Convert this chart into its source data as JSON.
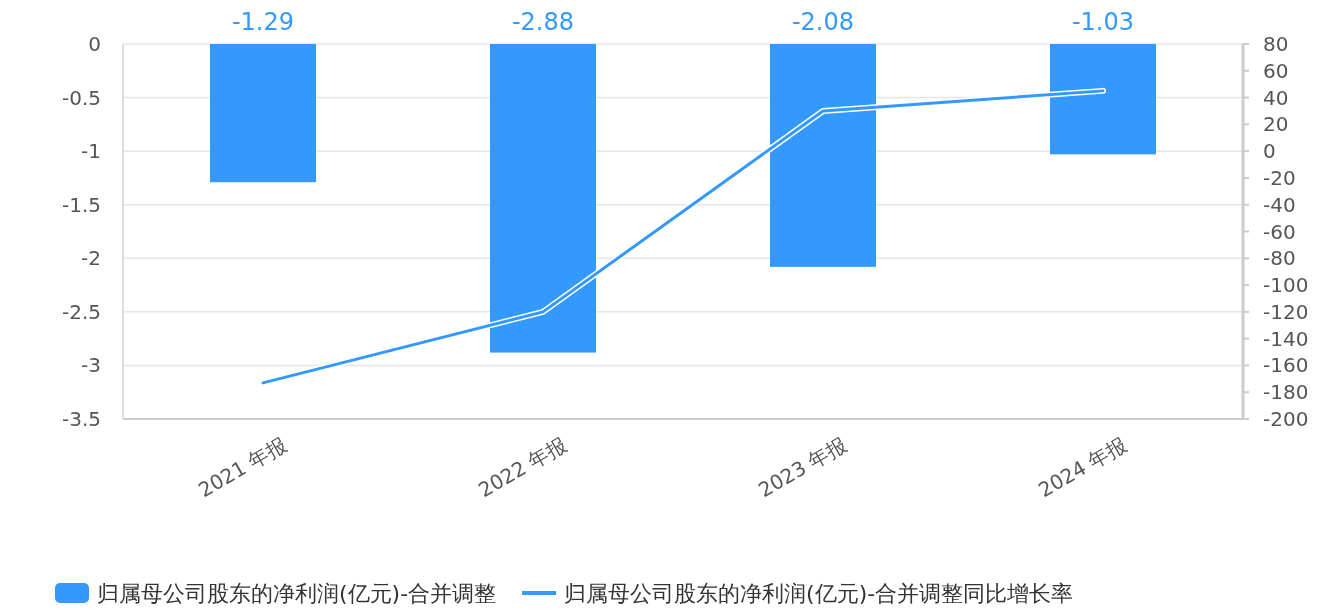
{
  "chart_data": {
    "type": "bar",
    "categories": [
      "2021 年报",
      "2022 年报",
      "2023 年报",
      "2024 年报"
    ],
    "series": [
      {
        "name": "归属母公司股东的净利润(亿元)-合并调整",
        "color": "#3399ff",
        "values": [
          -1.29,
          -2.88,
          -2.08,
          -1.03
        ],
        "value_labels": [
          "-1.29",
          "-2.88",
          "-2.08",
          "-1.03"
        ]
      },
      {
        "name": "归属母公司股东的净利润(亿元)-合并调整同比增长率",
        "type": "line",
        "axis": "y2",
        "color": "#3399ff",
        "values": [
          -173,
          -120,
          30,
          45
        ]
      }
    ],
    "ylim": [
      -3.5,
      0
    ],
    "yticks": [
      0,
      -0.5,
      -1,
      -1.5,
      -2,
      -2.5,
      -3,
      -3.5
    ],
    "y2lim": [
      -200,
      80
    ],
    "y2ticks": [
      80,
      60,
      40,
      20,
      0,
      -20,
      -40,
      -60,
      -80,
      -100,
      -120,
      -140,
      -160,
      -180,
      -200
    ],
    "grid": "y",
    "legend": "bottom",
    "marker": "none",
    "line_style": "solid"
  }
}
